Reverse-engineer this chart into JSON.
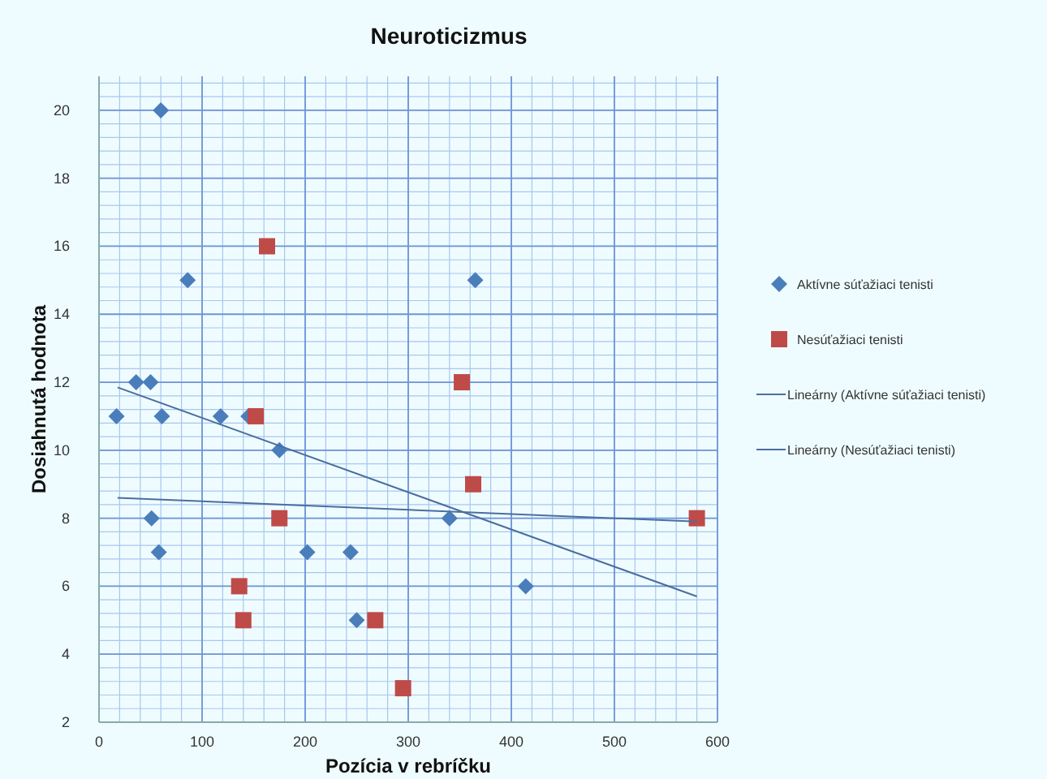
{
  "chart_data": {
    "type": "scatter",
    "title": "Neuroticizmus",
    "xlabel": "Pozícia v rebríčku",
    "ylabel": "Dosiahnutá hodnota",
    "xlim": [
      0,
      600
    ],
    "ylim": [
      2,
      21
    ],
    "xticks": [
      0,
      100,
      200,
      300,
      400,
      500,
      600
    ],
    "yticks": [
      2,
      4,
      6,
      8,
      10,
      12,
      14,
      16,
      18,
      20
    ],
    "grid": true,
    "legend": "right",
    "series": [
      {
        "name": "Aktívne súťažiaci tenisti",
        "color": "#4a7ebb",
        "marker": "diamond",
        "x": [
          17,
          36,
          50,
          61,
          118,
          145,
          175,
          51,
          58,
          202,
          244,
          250,
          340,
          414,
          60,
          86,
          365
        ],
        "values": [
          11,
          12,
          12,
          11,
          11,
          11,
          10,
          8,
          7,
          7,
          7,
          5,
          8,
          6,
          20,
          15,
          15
        ]
      },
      {
        "name": "Nesúťažiaci tenisti",
        "color": "#be4b48",
        "marker": "square",
        "x": [
          152,
          352,
          363,
          175,
          580,
          136,
          140,
          268,
          295,
          163
        ],
        "values": [
          11,
          12,
          9,
          8,
          8,
          6,
          5,
          5,
          3,
          16
        ]
      },
      {
        "name": "Lineárny (Aktívne súťažiaci tenisti)",
        "type": "line",
        "color": "#4a6ea0",
        "marker": "none",
        "x": [
          18,
          580
        ],
        "values": [
          11.85,
          5.7
        ]
      },
      {
        "name": "Lineárny (Nesúťažiaci tenisti)",
        "type": "line",
        "color": "#4a6ea0",
        "marker": "none",
        "x": [
          18,
          580
        ],
        "values": [
          8.6,
          7.9
        ]
      }
    ]
  }
}
